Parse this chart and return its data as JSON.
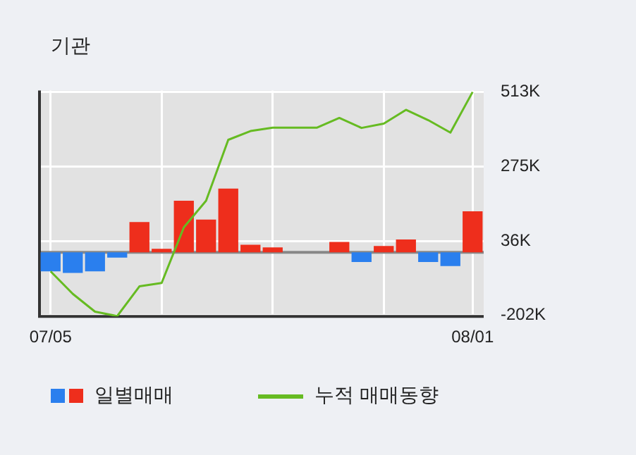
{
  "chart_data": {
    "type": "bar",
    "title": "기관",
    "categories": [
      "07/05",
      null,
      null,
      null,
      null,
      null,
      null,
      null,
      null,
      null,
      null,
      null,
      null,
      null,
      null,
      null,
      null,
      null,
      null,
      "08/01"
    ],
    "series": [
      {
        "name": "일별매매",
        "colors": [
          "#2a7fee",
          "#2a7fee",
          "#2a7fee",
          "#2a7fee",
          "#ee2e1c",
          "#ee2e1c",
          "#ee2e1c",
          "#ee2e1c",
          "#ee2e1c",
          "#ee2e1c",
          "#ee2e1c",
          "#ee2e1c",
          "#ee2e1c",
          "#ee2e1c",
          "#2a7fee",
          "#ee2e1c",
          "#ee2e1c",
          "#2a7fee",
          "#2a7fee",
          "#ee2e1c"
        ],
        "values": [
          -61,
          -66,
          -61,
          -17,
          97,
          11,
          165,
          105,
          204,
          24,
          16,
          0,
          0,
          33,
          -31,
          20,
          41,
          -31,
          -44,
          131
        ]
      },
      {
        "name": "누적 매매동향",
        "type": "line",
        "color": "#66bb22",
        "values": [
          -61,
          -133,
          -190,
          -204,
          -109,
          -98,
          80,
          165,
          360,
          388,
          399,
          399,
          399,
          430,
          398,
          412,
          456,
          423,
          383,
          513
        ]
      }
    ],
    "ylim": [
      -205,
      518
    ],
    "yticks": [
      {
        "value": -202,
        "label": "-202K"
      },
      {
        "value": 36,
        "label": "36K"
      },
      {
        "value": 275,
        "label": "275K"
      },
      {
        "value": 513,
        "label": "513K"
      }
    ],
    "ref_lines": [
      {
        "axis": "y",
        "value": 0,
        "color": "#888888"
      }
    ],
    "grid": true,
    "legend": "bottom",
    "marker": "none"
  }
}
